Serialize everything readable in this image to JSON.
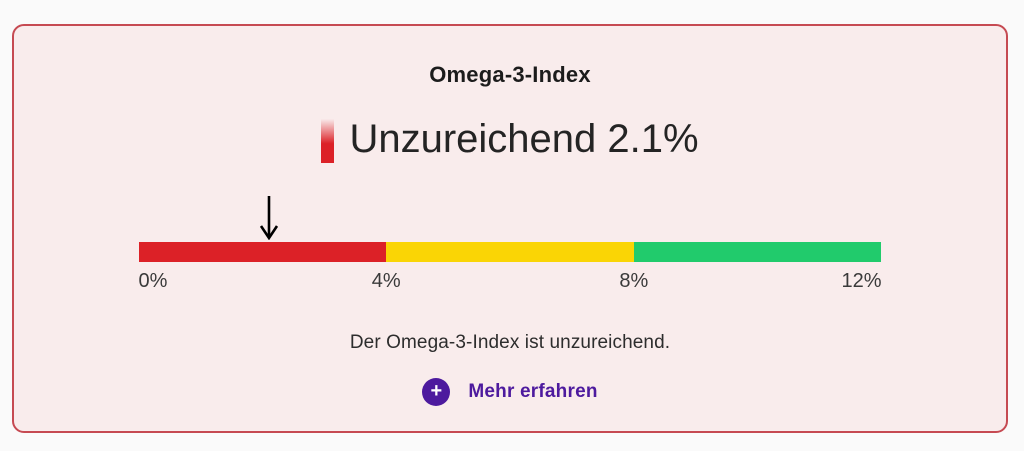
{
  "page": {
    "background": "#fafafa"
  },
  "card": {
    "background": "#f9ecec",
    "border_color": "#c64a52",
    "title": "Omega-3-Index",
    "status": {
      "text": "Unzureichend 2.1%",
      "gradient_icon_color": "#dc2127"
    },
    "description": "Der Omega-3-Index ist unzureichend.",
    "action": {
      "plus_glyph": "+",
      "label": "Mehr erfahren",
      "accent_color": "#4d1a9e"
    }
  },
  "chart_data": {
    "type": "bar",
    "subtype": "linear_gauge",
    "title": "Omega-3-Index",
    "status_label": "Unzureichend",
    "value": 2.1,
    "unit": "%",
    "axis_range": [
      0,
      12
    ],
    "tick_labels": [
      "0%",
      "4%",
      "8%",
      "12%"
    ],
    "zones": [
      {
        "from": 0,
        "to": 4,
        "color": "#dc2127"
      },
      {
        "from": 4,
        "to": 8,
        "color": "#fad505"
      },
      {
        "from": 8,
        "to": 12,
        "color": "#21cb6c"
      }
    ],
    "marker": {
      "shape": "down-arrow",
      "value": 2.1,
      "color": "#000000"
    },
    "caption": "Der Omega-3-Index ist unzureichend.",
    "legend": "none",
    "grid": false
  }
}
